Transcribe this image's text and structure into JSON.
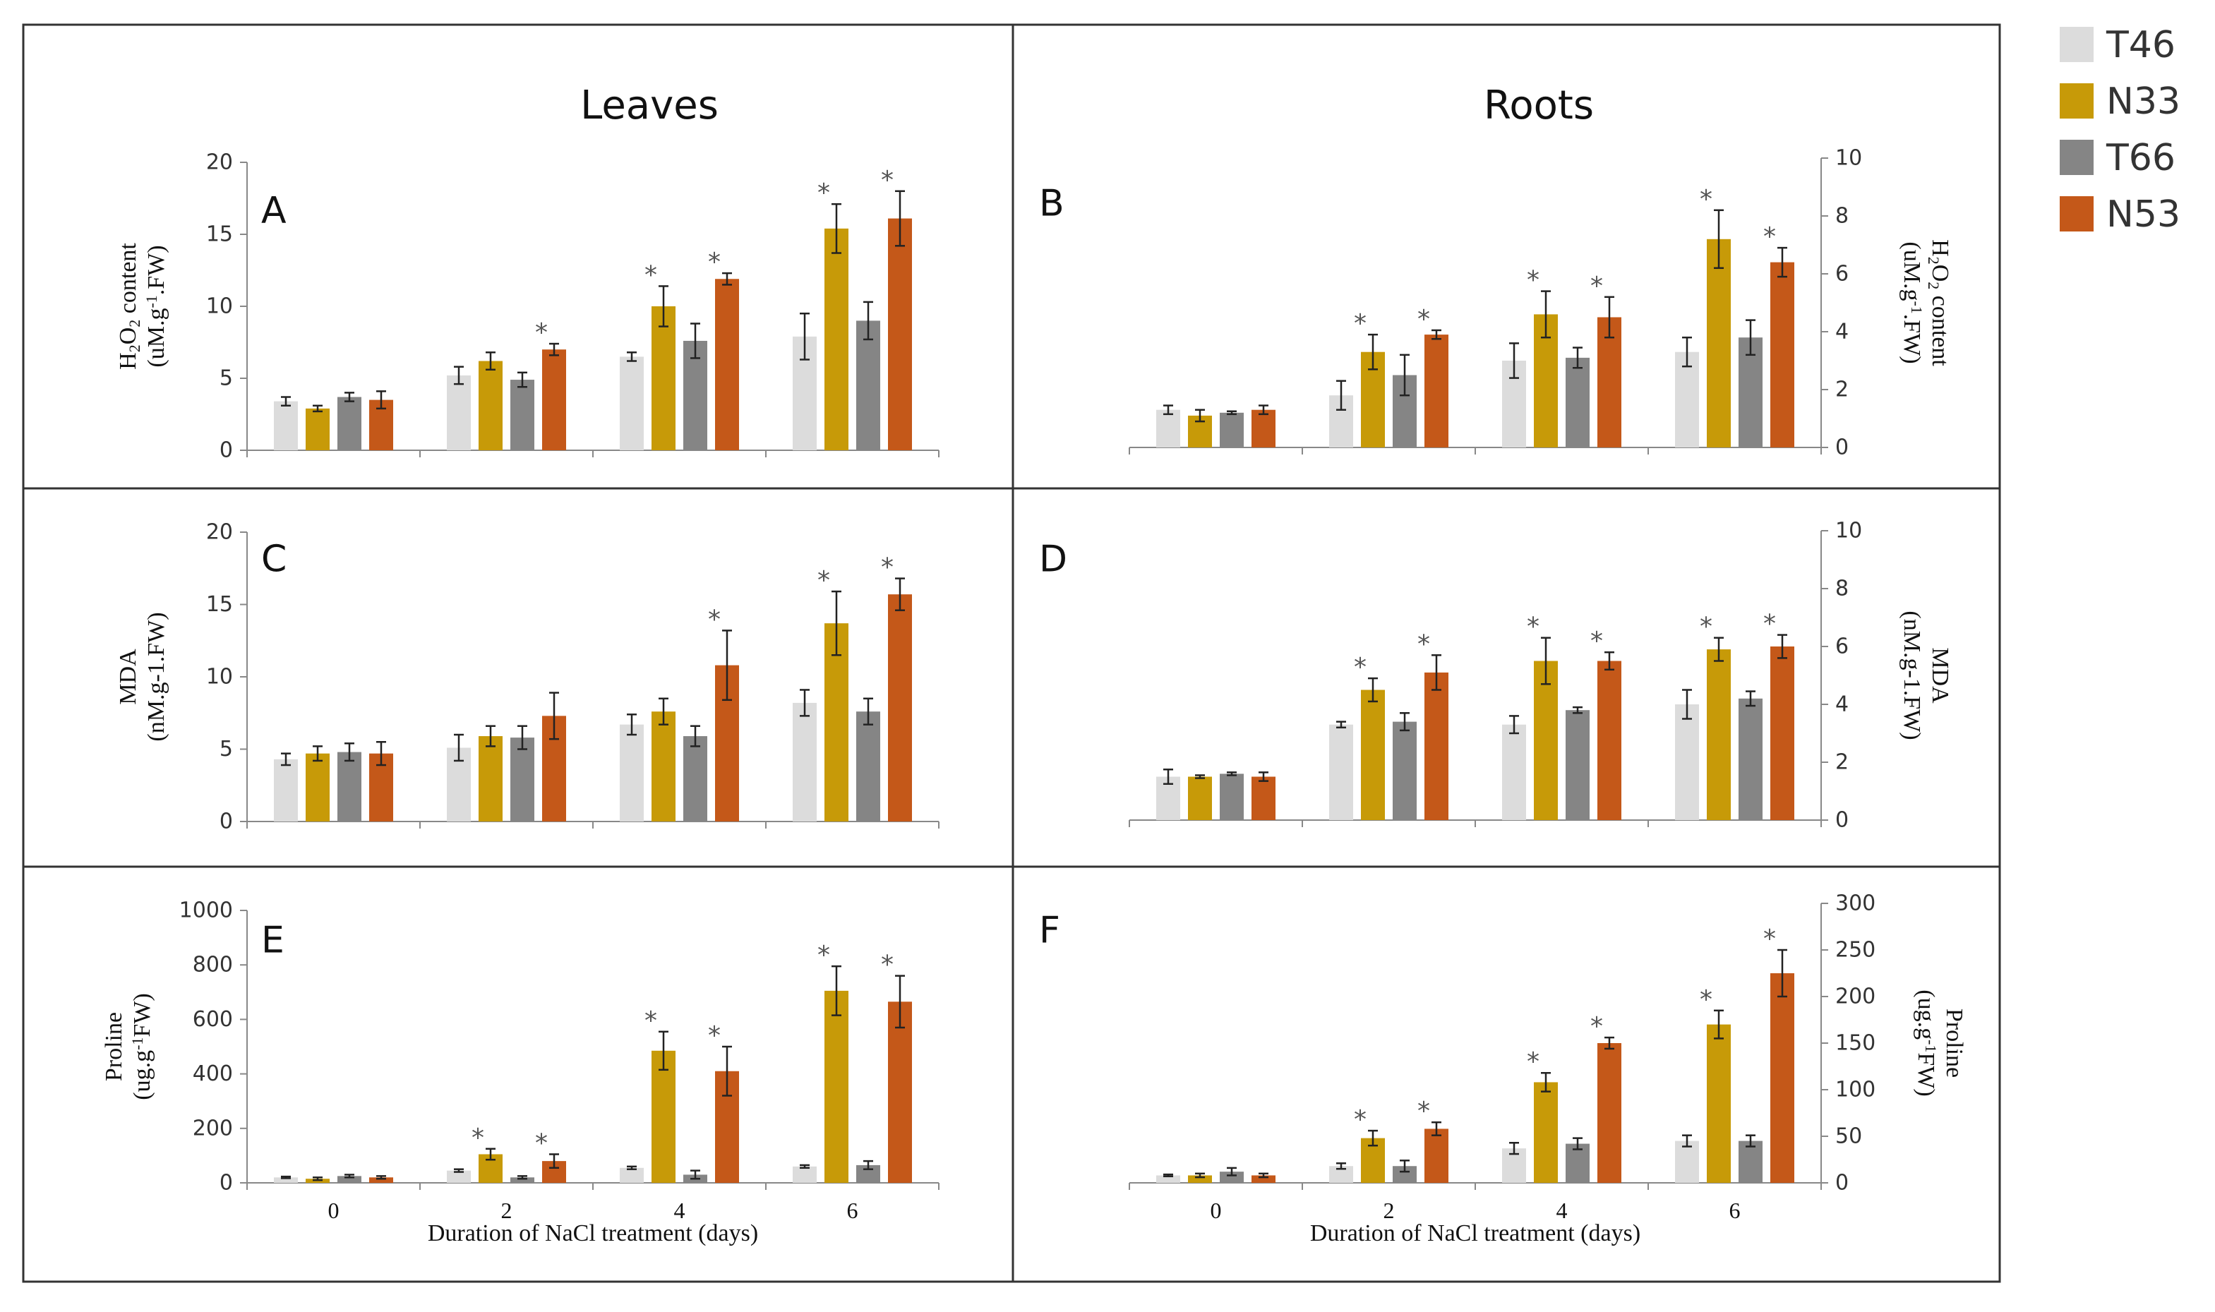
{
  "figure": {
    "column_titles": [
      "Leaves",
      "Roots"
    ],
    "legend": [
      {
        "name": "T46",
        "color": "#dcdcdc"
      },
      {
        "name": "N33",
        "color": "#c79a08"
      },
      {
        "name": "T66",
        "color": "#858585"
      },
      {
        "name": "N53",
        "color": "#c45819"
      }
    ],
    "frame_color": "#333333",
    "axis_color": "#888888",
    "marker_color": "#555555",
    "significance_marker": "*"
  },
  "chart_data": [
    {
      "panel": "A",
      "type": "bar",
      "organ": "Leaves",
      "ylabel_lines": [
        "H<sub>2</sub>O<sub>2</sub> content",
        "(uM.g<sup>-1</sup>.FW)"
      ],
      "ylim": [
        0,
        20
      ],
      "yticks": [
        0,
        5,
        10,
        15,
        20
      ],
      "yaxis_side": "left",
      "categories": [
        "0",
        "2",
        "4",
        "6"
      ],
      "show_x_tick_labels": false,
      "xlabel": "",
      "series": [
        {
          "name": "T46",
          "values": [
            3.4,
            5.2,
            6.5,
            7.9
          ],
          "errors": [
            0.3,
            0.6,
            0.3,
            1.6
          ],
          "sig": [
            false,
            false,
            false,
            false
          ]
        },
        {
          "name": "N33",
          "values": [
            2.9,
            6.2,
            10.0,
            15.4
          ],
          "errors": [
            0.2,
            0.6,
            1.4,
            1.7
          ],
          "sig": [
            false,
            false,
            true,
            true
          ]
        },
        {
          "name": "T66",
          "values": [
            3.7,
            4.9,
            7.6,
            9.0
          ],
          "errors": [
            0.3,
            0.5,
            1.2,
            1.3
          ],
          "sig": [
            false,
            false,
            false,
            false
          ]
        },
        {
          "name": "N53",
          "values": [
            3.5,
            7.0,
            11.9,
            16.1
          ],
          "errors": [
            0.6,
            0.4,
            0.4,
            1.9
          ],
          "sig": [
            false,
            true,
            true,
            true
          ]
        }
      ]
    },
    {
      "panel": "B",
      "type": "bar",
      "organ": "Roots",
      "ylabel_lines": [
        "H<sub>2</sub>O<sub>2</sub> content",
        "(uM.g<sup>-1</sup>.FW)"
      ],
      "ylim": [
        0,
        10
      ],
      "yticks": [
        0,
        2,
        4,
        6,
        8,
        10
      ],
      "yaxis_side": "right",
      "categories": [
        "0",
        "2",
        "4",
        "6"
      ],
      "show_x_tick_labels": false,
      "xlabel": "",
      "series": [
        {
          "name": "T46",
          "values": [
            1.3,
            1.8,
            3.0,
            3.3
          ],
          "errors": [
            0.15,
            0.5,
            0.6,
            0.5
          ],
          "sig": [
            false,
            false,
            false,
            false
          ]
        },
        {
          "name": "N33",
          "values": [
            1.1,
            3.3,
            4.6,
            7.2
          ],
          "errors": [
            0.2,
            0.6,
            0.8,
            1.0
          ],
          "sig": [
            false,
            true,
            true,
            true
          ]
        },
        {
          "name": "T66",
          "values": [
            1.2,
            2.5,
            3.1,
            3.8
          ],
          "errors": [
            0.05,
            0.7,
            0.35,
            0.6
          ],
          "sig": [
            false,
            false,
            false,
            false
          ]
        },
        {
          "name": "N53",
          "values": [
            1.3,
            3.9,
            4.5,
            6.4
          ],
          "errors": [
            0.15,
            0.15,
            0.7,
            0.5
          ],
          "sig": [
            false,
            true,
            true,
            true
          ]
        }
      ]
    },
    {
      "panel": "C",
      "type": "bar",
      "organ": "Leaves",
      "ylabel_lines": [
        "MDA",
        "(nM.g-1.FW)"
      ],
      "ylim": [
        0,
        20
      ],
      "yticks": [
        0,
        5,
        10,
        15,
        20
      ],
      "yaxis_side": "left",
      "categories": [
        "0",
        "2",
        "4",
        "6"
      ],
      "show_x_tick_labels": false,
      "xlabel": "",
      "series": [
        {
          "name": "T46",
          "values": [
            4.3,
            5.1,
            6.7,
            8.2
          ],
          "errors": [
            0.4,
            0.9,
            0.7,
            0.9
          ],
          "sig": [
            false,
            false,
            false,
            false
          ]
        },
        {
          "name": "N33",
          "values": [
            4.7,
            5.9,
            7.6,
            13.7
          ],
          "errors": [
            0.5,
            0.7,
            0.9,
            2.2
          ],
          "sig": [
            false,
            false,
            false,
            true
          ]
        },
        {
          "name": "T66",
          "values": [
            4.8,
            5.8,
            5.9,
            7.6
          ],
          "errors": [
            0.6,
            0.8,
            0.7,
            0.9
          ],
          "sig": [
            false,
            false,
            false,
            false
          ]
        },
        {
          "name": "N53",
          "values": [
            4.7,
            7.3,
            10.8,
            15.7
          ],
          "errors": [
            0.8,
            1.6,
            2.4,
            1.1
          ],
          "sig": [
            false,
            false,
            true,
            true
          ]
        }
      ]
    },
    {
      "panel": "D",
      "type": "bar",
      "organ": "Roots",
      "ylabel_lines": [
        "MDA",
        "(nM.g-1.FW)"
      ],
      "ylim": [
        0,
        10
      ],
      "yticks": [
        0,
        2,
        4,
        6,
        8,
        10
      ],
      "yaxis_side": "right",
      "categories": [
        "0",
        "2",
        "4",
        "6"
      ],
      "show_x_tick_labels": false,
      "xlabel": "",
      "series": [
        {
          "name": "T46",
          "values": [
            1.5,
            3.3,
            3.3,
            4.0
          ],
          "errors": [
            0.25,
            0.1,
            0.3,
            0.5
          ],
          "sig": [
            false,
            false,
            false,
            false
          ]
        },
        {
          "name": "N33",
          "values": [
            1.5,
            4.5,
            5.5,
            5.9
          ],
          "errors": [
            0.05,
            0.4,
            0.8,
            0.4
          ],
          "sig": [
            false,
            true,
            true,
            true
          ]
        },
        {
          "name": "T66",
          "values": [
            1.6,
            3.4,
            3.8,
            4.2
          ],
          "errors": [
            0.05,
            0.3,
            0.1,
            0.25
          ],
          "sig": [
            false,
            false,
            false,
            false
          ]
        },
        {
          "name": "N53",
          "values": [
            1.5,
            5.1,
            5.5,
            6.0
          ],
          "errors": [
            0.15,
            0.6,
            0.3,
            0.4
          ],
          "sig": [
            false,
            true,
            true,
            true
          ]
        }
      ]
    },
    {
      "panel": "E",
      "type": "bar",
      "organ": "Leaves",
      "ylabel_lines": [
        "Proline",
        "(ug.g<sup>-1</sup>FW)"
      ],
      "ylim": [
        0,
        1000
      ],
      "yticks": [
        0,
        200,
        400,
        600,
        800,
        1000
      ],
      "yaxis_side": "left",
      "categories": [
        "0",
        "2",
        "4",
        "6"
      ],
      "show_x_tick_labels": true,
      "xlabel": "Duration of NaCl treatment (days)",
      "series": [
        {
          "name": "T46",
          "values": [
            20,
            45,
            55,
            60
          ],
          "errors": [
            3,
            5,
            5,
            5
          ],
          "sig": [
            false,
            false,
            false,
            false
          ]
        },
        {
          "name": "N33",
          "values": [
            15,
            105,
            485,
            705
          ],
          "errors": [
            5,
            20,
            70,
            90
          ],
          "sig": [
            false,
            true,
            true,
            true
          ]
        },
        {
          "name": "T66",
          "values": [
            25,
            20,
            30,
            65
          ],
          "errors": [
            5,
            5,
            15,
            15
          ],
          "sig": [
            false,
            false,
            false,
            false
          ]
        },
        {
          "name": "N53",
          "values": [
            20,
            80,
            410,
            665
          ],
          "errors": [
            5,
            25,
            90,
            95
          ],
          "sig": [
            false,
            true,
            true,
            true
          ]
        }
      ]
    },
    {
      "panel": "F",
      "type": "bar",
      "organ": "Roots",
      "ylabel_lines": [
        "Proline",
        "(ug.g<sup>-1</sup>FW)"
      ],
      "ylim": [
        0,
        300
      ],
      "yticks": [
        0,
        50,
        100,
        150,
        200,
        250,
        300
      ],
      "yaxis_side": "right",
      "categories": [
        "0",
        "2",
        "4",
        "6"
      ],
      "show_x_tick_labels": true,
      "xlabel": "Duration of NaCl treatment (days)",
      "series": [
        {
          "name": "T46",
          "values": [
            8,
            18,
            37,
            45
          ],
          "errors": [
            1,
            3,
            6,
            6
          ],
          "sig": [
            false,
            false,
            false,
            false
          ]
        },
        {
          "name": "N33",
          "values": [
            8,
            48,
            108,
            170
          ],
          "errors": [
            2,
            8,
            10,
            15
          ],
          "sig": [
            false,
            true,
            true,
            true
          ]
        },
        {
          "name": "T66",
          "values": [
            12,
            18,
            42,
            45
          ],
          "errors": [
            4,
            6,
            6,
            6
          ],
          "sig": [
            false,
            false,
            false,
            false
          ]
        },
        {
          "name": "N53",
          "values": [
            8,
            58,
            150,
            225
          ],
          "errors": [
            2,
            7,
            6,
            25
          ],
          "sig": [
            false,
            true,
            true,
            true
          ]
        }
      ]
    }
  ]
}
